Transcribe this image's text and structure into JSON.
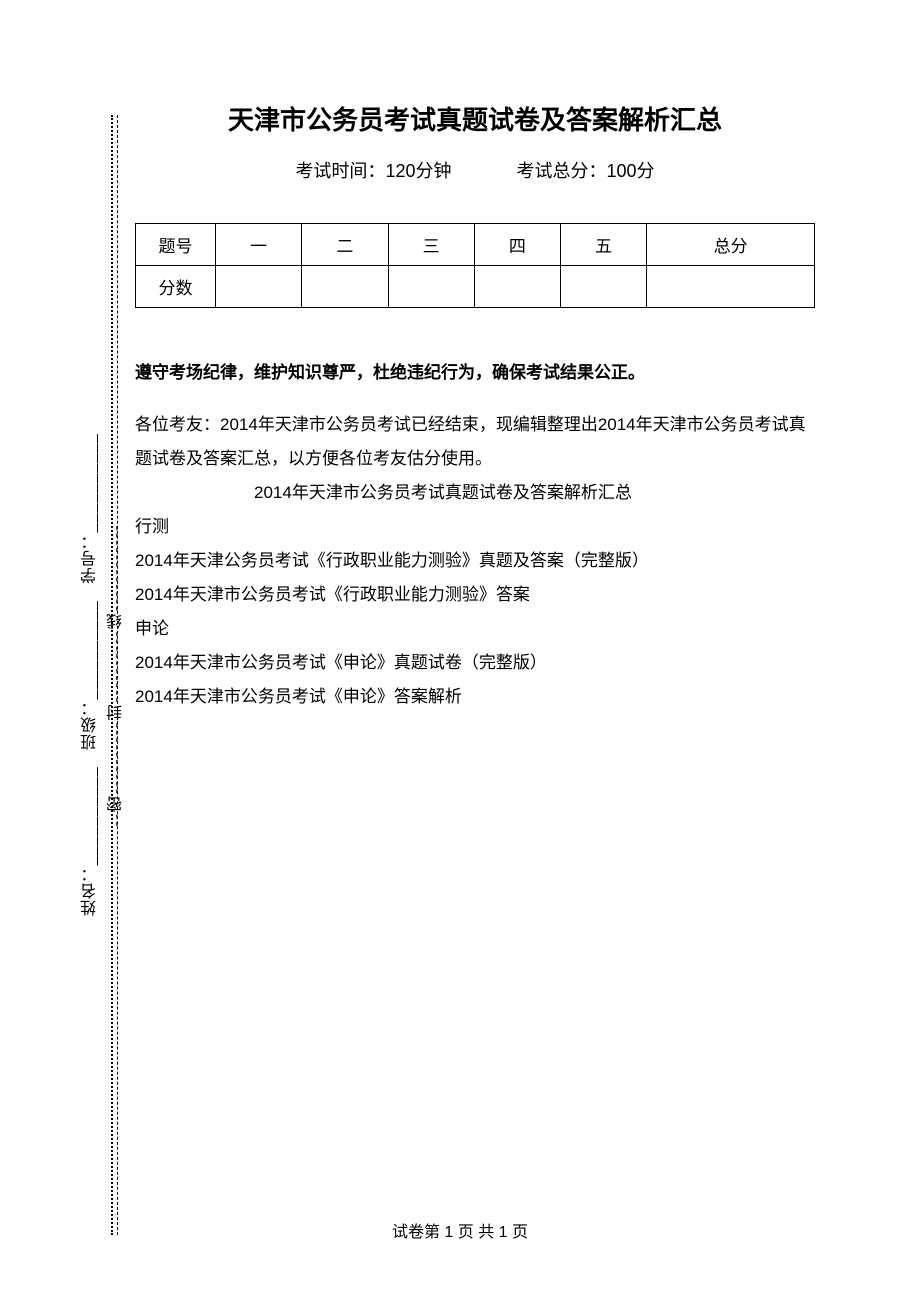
{
  "title": "天津市公务员考试真题试卷及答案解析汇总",
  "meta": {
    "time_label": "考试时间：",
    "time_value": "120分钟",
    "score_label": "考试总分：",
    "score_value": "100分"
  },
  "table": {
    "row1_label": "题号",
    "row2_label": "分数",
    "cols": [
      "一",
      "二",
      "三",
      "四",
      "五",
      "总分"
    ],
    "scores": [
      "",
      "",
      "",
      "",
      "",
      ""
    ]
  },
  "notice": "遵守考场纪律，维护知识尊严，杜绝违纪行为，确保考试结果公正。",
  "body": {
    "p1": "各位考友：2014年天津市公务员考试已经结束，现编辑整理出2014年天津市公务员考试真题试卷及答案汇总，以方便各位考友估分使用。",
    "p2": "2014年天津市公务员考试真题试卷及答案解析汇总",
    "p3": "行测",
    "p4": "2014年天津公务员考试《行政职业能力测验》真题及答案（完整版）",
    "p5": "2014年天津市公务员考试《行政职业能力测验》答案",
    "p6": "申论",
    "p7": "2014年天津市公务员考试《申论》真题试卷（完整版）",
    "p8": "2014年天津市公务员考试《申论》答案解析"
  },
  "footer": "试卷第 1 页 共 1 页",
  "binding": {
    "seal_marks": "密----------封----------线--",
    "field_name": "姓名：",
    "field_class": "班级：",
    "field_id": "学号：",
    "blank": "__________"
  },
  "colors": {
    "text": "#000000",
    "background": "#ffffff",
    "border": "#000000"
  }
}
